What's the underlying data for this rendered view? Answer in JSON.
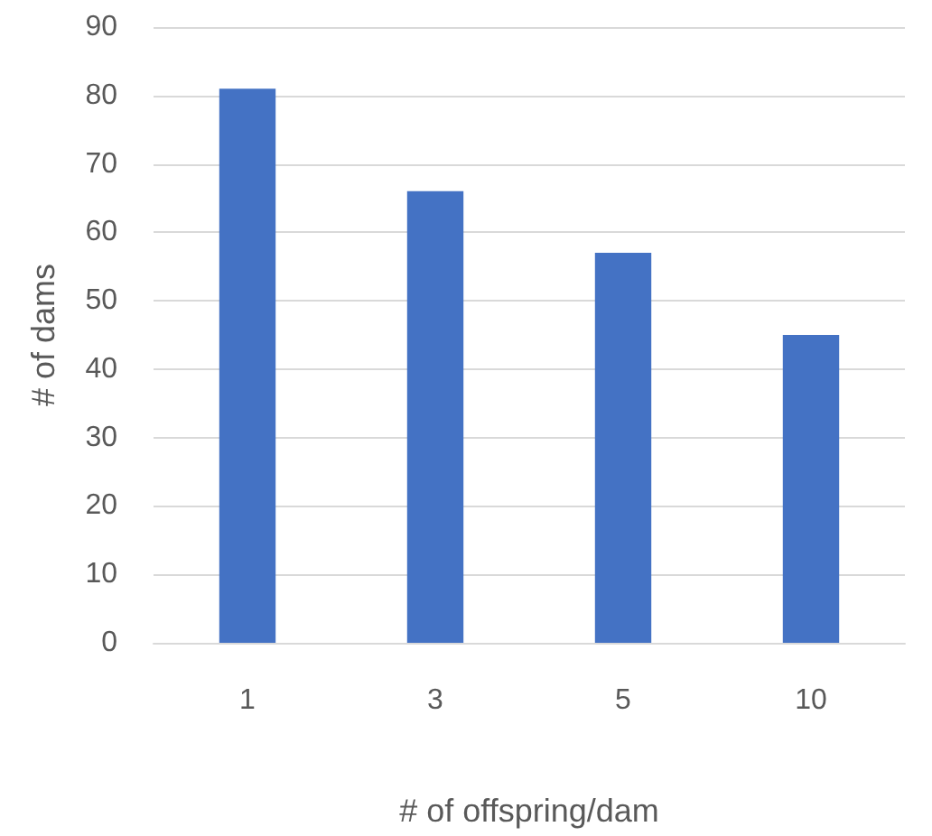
{
  "chart_data": {
    "type": "bar",
    "xlabel": "# of offspring/dam",
    "ylabel": "# of dams",
    "categories": [
      "1",
      "3",
      "5",
      "10"
    ],
    "values": [
      81,
      66,
      57,
      45
    ],
    "color": "#4472c4",
    "ylim": [
      0,
      90
    ],
    "yticks": [
      0,
      10,
      20,
      30,
      40,
      50,
      60,
      70,
      80,
      90
    ],
    "grid": "y"
  }
}
